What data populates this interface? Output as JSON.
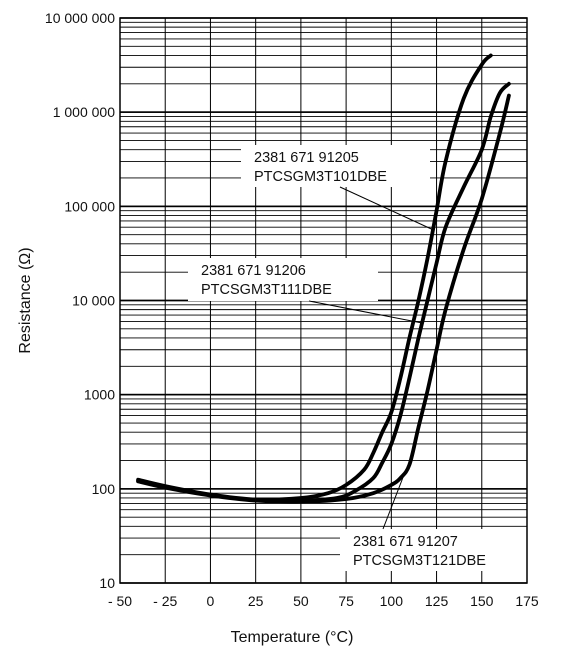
{
  "chart_data": {
    "type": "line",
    "title": "",
    "xlabel": "Temperature (°C)",
    "ylabel": "Resistance (Ω)",
    "xlim": [
      -50,
      175
    ],
    "ylim": [
      10,
      10000000
    ],
    "yscale": "log",
    "grid": true,
    "x_ticks": [
      -50,
      -25,
      0,
      25,
      50,
      75,
      100,
      125,
      150,
      175
    ],
    "x_tick_labels": [
      "- 50",
      "- 25",
      "0",
      "25",
      "50",
      "75",
      "100",
      "125",
      "150",
      "175"
    ],
    "y_ticks": [
      10,
      100,
      1000,
      10000,
      100000,
      1000000,
      10000000
    ],
    "y_tick_labels": [
      "10",
      "100",
      "1000",
      "10 000",
      "100 000",
      "1 000 000",
      "10 000 000"
    ],
    "series": [
      {
        "name": "2381 671 91205 PTCSGM3T101DBE",
        "label_lines": [
          "2381 671 91205",
          "PTCSGM3T101DBE"
        ],
        "x": [
          -40,
          -25,
          0,
          25,
          50,
          65,
          75,
          85,
          90,
          95,
          100,
          105,
          110,
          115,
          120,
          125,
          130,
          140,
          150,
          155
        ],
        "y": [
          125,
          107,
          87,
          77,
          80,
          90,
          110,
          160,
          240,
          400,
          650,
          1500,
          4000,
          10000,
          28000,
          90000,
          300000,
          1400000,
          3200000,
          4000000
        ],
        "label_points_to_x": 123
      },
      {
        "name": "2381 671 91206 PTCSGM3T111DBE",
        "label_lines": [
          "2381 671 91206",
          "PTCSGM3T111DBE"
        ],
        "x": [
          -40,
          -25,
          0,
          25,
          50,
          70,
          80,
          90,
          95,
          100,
          105,
          110,
          115,
          120,
          125,
          130,
          140,
          150,
          155,
          160,
          165
        ],
        "y": [
          122,
          105,
          86,
          76,
          75,
          80,
          95,
          130,
          190,
          300,
          600,
          1500,
          4000,
          10000,
          25000,
          60000,
          160000,
          400000,
          900000,
          1600000,
          2000000
        ],
        "label_points_to_x": 117
      },
      {
        "name": "2381 671 91207 PTCSGM3T121DBE",
        "label_lines": [
          "2381 671 91207",
          "PTCSGM3T121DBE"
        ],
        "x": [
          -40,
          -25,
          0,
          25,
          50,
          75,
          90,
          100,
          105,
          110,
          115,
          120,
          125,
          130,
          140,
          150,
          160,
          165
        ],
        "y": [
          120,
          103,
          85,
          75,
          73,
          78,
          90,
          110,
          130,
          180,
          450,
          1100,
          3000,
          8000,
          35000,
          120000,
          600000,
          1500000
        ],
        "label_points_to_x": 108
      }
    ]
  }
}
